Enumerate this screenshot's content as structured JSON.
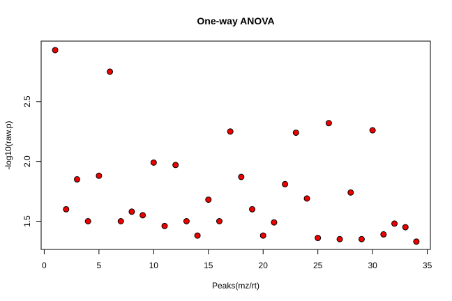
{
  "chart_data": {
    "type": "scatter",
    "title": "One-way ANOVA",
    "xlabel": "Peaks(mz/rt)",
    "ylabel": "-log10(raw.p)",
    "xlim": [
      0,
      35
    ],
    "ylim": [
      1.3,
      2.97
    ],
    "xticks": [
      0,
      5,
      10,
      15,
      20,
      25,
      30,
      35
    ],
    "yticks": [
      1.5,
      2.0,
      2.5
    ],
    "ytick_labels": [
      "1.5",
      "2.0",
      "2.5"
    ],
    "grid": false,
    "marker_fill": "#ee0000",
    "marker_stroke": "#000000",
    "x": [
      1,
      2,
      3,
      4,
      5,
      6,
      7,
      8,
      9,
      10,
      11,
      12,
      13,
      14,
      15,
      16,
      17,
      18,
      19,
      20,
      21,
      22,
      23,
      24,
      25,
      26,
      27,
      28,
      29,
      30,
      31,
      32,
      33,
      34
    ],
    "y": [
      2.93,
      1.6,
      1.85,
      1.5,
      1.88,
      2.75,
      1.5,
      1.58,
      1.55,
      1.99,
      1.46,
      1.97,
      1.5,
      1.38,
      1.68,
      1.5,
      2.25,
      1.87,
      1.6,
      1.38,
      1.49,
      1.81,
      2.24,
      1.69,
      1.36,
      2.32,
      1.35,
      1.74,
      1.35,
      2.26,
      1.39,
      1.48,
      1.45,
      1.33
    ]
  }
}
